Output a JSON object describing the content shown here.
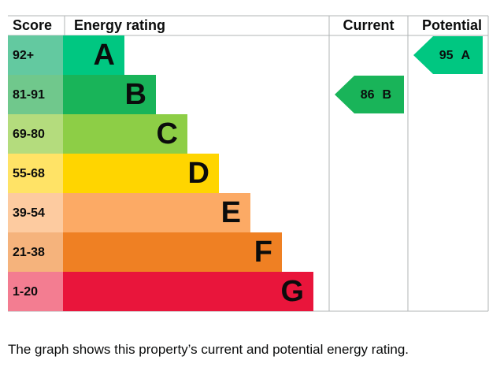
{
  "header": {
    "score": "Score",
    "rating": "Energy rating",
    "current": "Current",
    "potential": "Potential"
  },
  "bands": [
    {
      "score": "92+",
      "letter": "A",
      "color": "#00c781",
      "score_color": "#63c9a0"
    },
    {
      "score": "81-91",
      "letter": "B",
      "color": "#19b459",
      "score_color": "#70c88c"
    },
    {
      "score": "69-80",
      "letter": "C",
      "color": "#8dce46",
      "score_color": "#b4dc7d"
    },
    {
      "score": "55-68",
      "letter": "D",
      "color": "#ffd500",
      "score_color": "#ffe366"
    },
    {
      "score": "39-54",
      "letter": "E",
      "color": "#fcaa65",
      "score_color": "#fdcba0"
    },
    {
      "score": "21-38",
      "letter": "F",
      "color": "#ef8023",
      "score_color": "#f5b37c"
    },
    {
      "score": "1-20",
      "letter": "G",
      "color": "#e9153b",
      "score_color": "#f37d91"
    }
  ],
  "current": {
    "value": "86",
    "letter": "B"
  },
  "potential": {
    "value": "95",
    "letter": "A"
  },
  "caption": "The graph shows this property’s current and potential energy rating."
}
